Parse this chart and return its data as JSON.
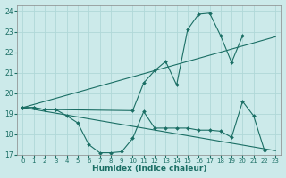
{
  "xlabel": "Humidex (Indice chaleur)",
  "background_color": "#cceaea",
  "grid_color": "#b0d8d8",
  "line_color": "#1a6e64",
  "xlim": [
    -0.5,
    23.5
  ],
  "ylim": [
    17,
    24.3
  ],
  "xticks": [
    0,
    1,
    2,
    3,
    4,
    5,
    6,
    7,
    8,
    9,
    10,
    11,
    12,
    13,
    14,
    15,
    16,
    17,
    18,
    19,
    20,
    21,
    22,
    23
  ],
  "yticks": [
    17,
    18,
    19,
    20,
    21,
    22,
    23,
    24
  ],
  "curve1_x": [
    0,
    1,
    2,
    3,
    4,
    5,
    6,
    7,
    8,
    9,
    10,
    11,
    12,
    13,
    14,
    15,
    16,
    17,
    18,
    19,
    20,
    21,
    22
  ],
  "curve1_y": [
    19.3,
    19.3,
    19.2,
    19.2,
    18.9,
    18.55,
    17.5,
    17.1,
    17.1,
    17.15,
    17.8,
    19.1,
    18.3,
    18.3,
    18.3,
    18.3,
    18.2,
    18.2,
    18.15,
    17.85,
    19.6,
    18.9,
    17.2
  ],
  "curve2_x": [
    0,
    1,
    2,
    3,
    10,
    11,
    12,
    13,
    14,
    15,
    16,
    17,
    18,
    19,
    20
  ],
  "curve2_y": [
    19.3,
    19.3,
    19.2,
    19.2,
    19.15,
    20.5,
    21.1,
    21.55,
    20.4,
    23.1,
    23.85,
    23.9,
    22.8,
    21.5,
    22.8
  ],
  "line1_x": [
    0,
    23
  ],
  "line1_y": [
    19.3,
    22.75
  ],
  "line2_x": [
    0,
    23
  ],
  "line2_y": [
    19.3,
    17.2
  ]
}
